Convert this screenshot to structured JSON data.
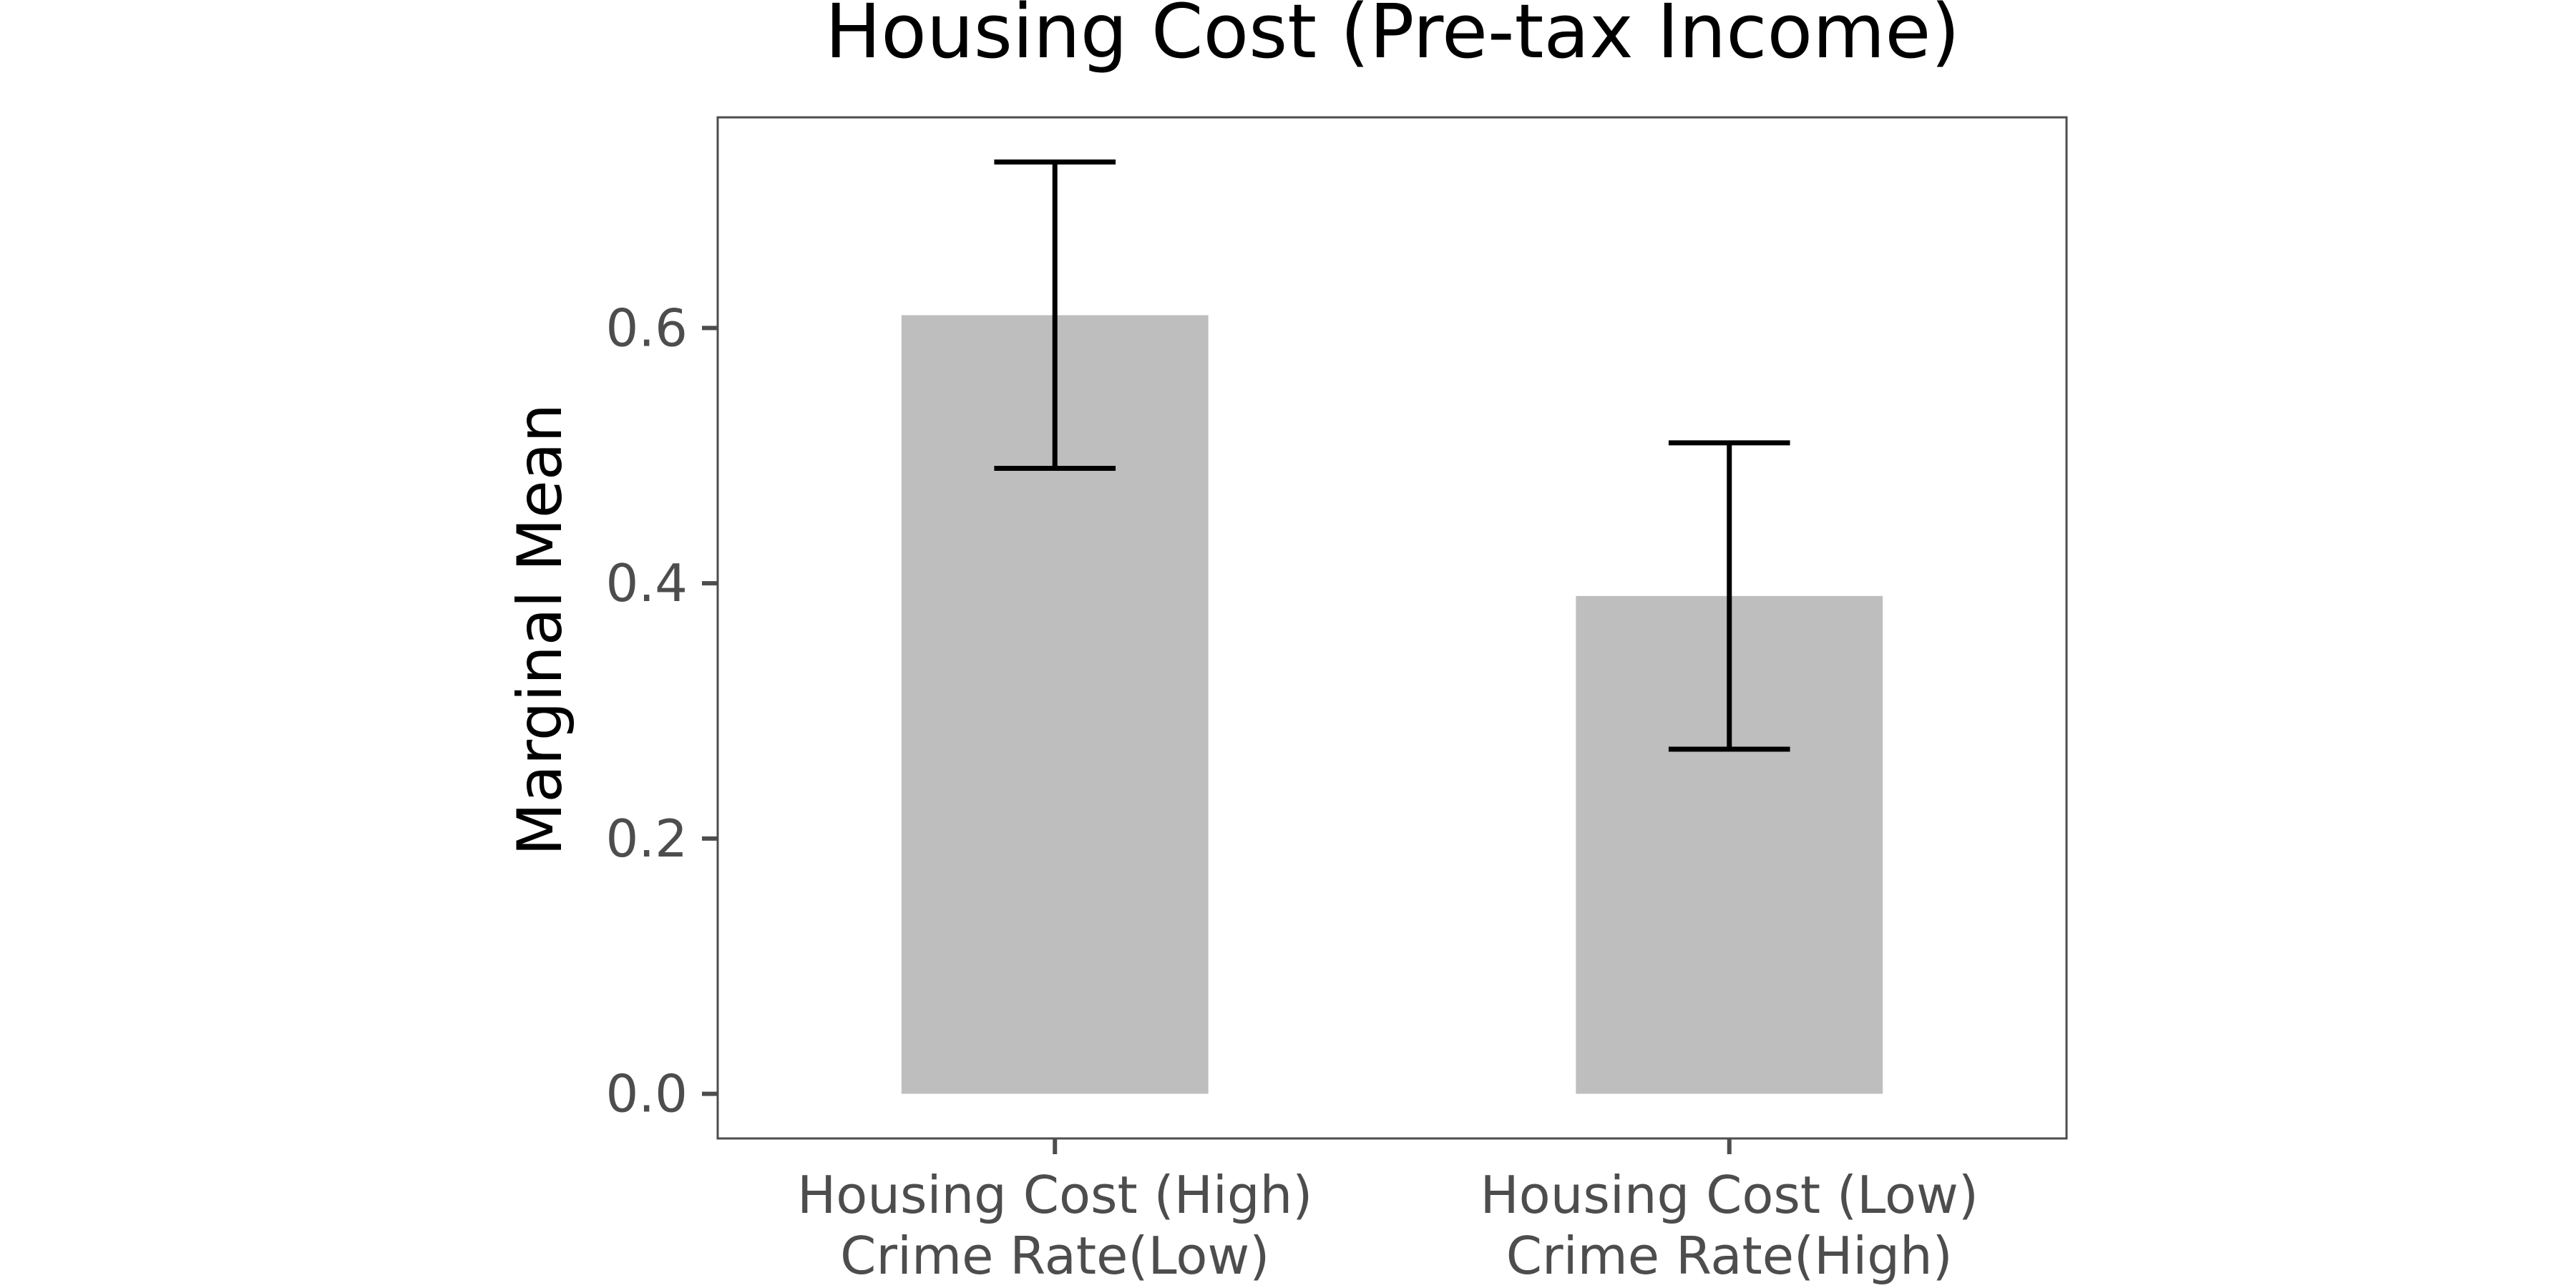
{
  "chart_data": {
    "type": "bar",
    "title": "Housing Cost (Pre-tax Income)",
    "xlabel": "",
    "ylabel": "Marginal Mean",
    "categories": [
      [
        "Housing Cost (High)",
        "Crime Rate(Low)"
      ],
      [
        "Housing Cost (Low)",
        "Crime Rate(High)"
      ]
    ],
    "values": [
      0.61,
      0.39
    ],
    "error_bars": [
      {
        "low": 0.49,
        "high": 0.73
      },
      {
        "low": 0.27,
        "high": 0.51
      }
    ],
    "ylim": [
      -0.035,
      0.765
    ],
    "yticks": [
      0.0,
      0.2,
      0.4,
      0.6
    ],
    "ytick_labels": [
      "0.0",
      "0.2",
      "0.4",
      "0.6"
    ],
    "grid": false,
    "legend": "none",
    "colors": {
      "bar": "#bebebe",
      "error_bar": "#000000",
      "panel_border": "#4d4d4d",
      "tick": "#4d4d4d",
      "tick_label": "#4d4d4d"
    }
  }
}
